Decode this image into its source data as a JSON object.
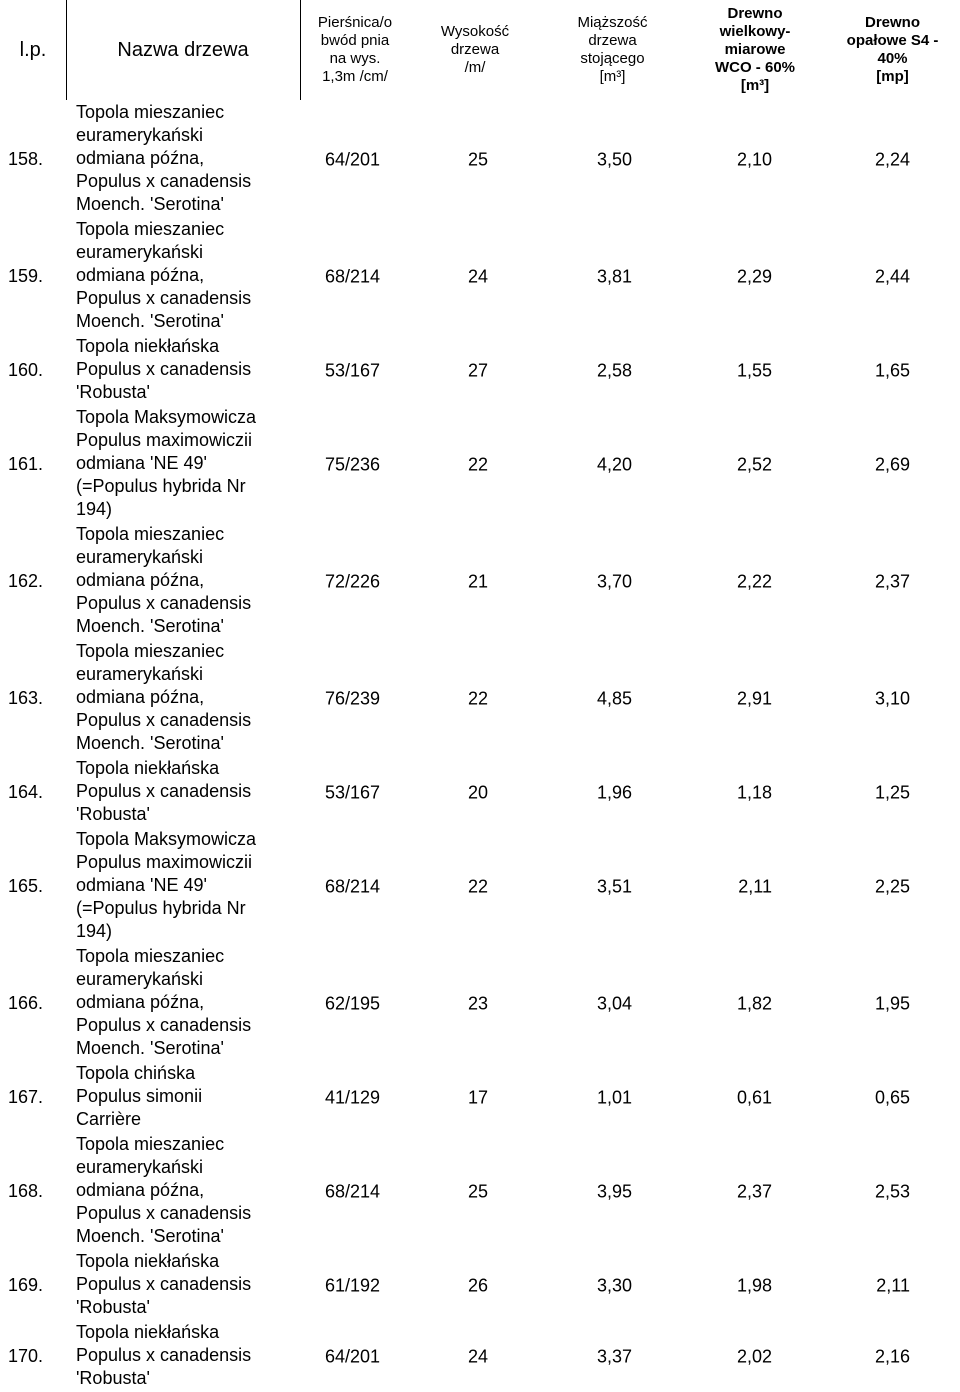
{
  "header": {
    "lp": "l.p.",
    "name": "Nazwa drzewa",
    "girth": "Pierśnica/o\nbwód pnia\nna wys.\n1,3m /cm/",
    "height": "Wysokość\ndrzewa\n/m/",
    "volume": "Miąższość\ndrzewa\nstojącego\n[m³]",
    "wco": "Drewno\nwielkowy-\nmiarowe\nWCO - 60%\n[m³]",
    "s4": "Drewno\nopałowe S4 -\n40%\n[mp]"
  },
  "rows": [
    {
      "lp": "158.",
      "name": [
        "Topola mieszaniec",
        "euramerykański",
        "odmiana późna,",
        "Populus x canadensis",
        "Moench. 'Serotina'"
      ],
      "girth": "64/201",
      "height": "25",
      "volume": "3,50",
      "wco": "2,10",
      "s4": "2,24"
    },
    {
      "lp": "159.",
      "name": [
        "Topola mieszaniec",
        "euramerykański",
        "odmiana późna,",
        "Populus x canadensis",
        "Moench. 'Serotina'"
      ],
      "girth": "68/214",
      "height": "24",
      "volume": "3,81",
      "wco": "2,29",
      "s4": "2,44"
    },
    {
      "lp": "160.",
      "name": [
        "Topola niekłańska",
        "Populus x canadensis",
        "'Robusta'"
      ],
      "girth": "53/167",
      "height": "27",
      "volume": "2,58",
      "wco": "1,55",
      "s4": "1,65"
    },
    {
      "lp": "161.",
      "name": [
        "Topola Maksymowicza",
        "Populus maximowiczii",
        "odmiana 'NE 49'",
        "(=Populus hybrida Nr",
        "194)"
      ],
      "girth": "75/236",
      "height": "22",
      "volume": "4,20",
      "wco": "2,52",
      "s4": "2,69"
    },
    {
      "lp": "162.",
      "name": [
        "Topola mieszaniec",
        "euramerykański",
        "odmiana późna,",
        "Populus x canadensis",
        "Moench. 'Serotina'"
      ],
      "girth": "72/226",
      "height": "21",
      "volume": "3,70",
      "wco": "2,22",
      "s4": "2,37"
    },
    {
      "lp": "163.",
      "name": [
        "Topola mieszaniec",
        "euramerykański",
        "odmiana późna,",
        "Populus x canadensis",
        "Moench. 'Serotina'"
      ],
      "girth": "76/239",
      "height": "22",
      "volume": "4,85",
      "wco": "2,91",
      "s4": "3,10"
    },
    {
      "lp": "164.",
      "name": [
        "Topola niekłańska",
        "Populus x canadensis",
        "'Robusta'"
      ],
      "girth": "53/167",
      "height": "20",
      "volume": "1,96",
      "wco": "1,18",
      "s4": "1,25"
    },
    {
      "lp": "165.",
      "name": [
        "Topola Maksymowicza",
        "Populus maximowiczii",
        "odmiana 'NE 49'",
        "(=Populus hybrida Nr",
        "194)"
      ],
      "girth": "68/214",
      "height": "22",
      "volume": "3,51",
      "wco": "2,11",
      "s4": "2,25"
    },
    {
      "lp": "166.",
      "name": [
        "Topola mieszaniec",
        "euramerykański",
        "odmiana późna,",
        "Populus x canadensis",
        "Moench. 'Serotina'"
      ],
      "girth": "62/195",
      "height": "23",
      "volume": "3,04",
      "wco": "1,82",
      "s4": "1,95"
    },
    {
      "lp": "167.",
      "name": [
        "Topola chińska",
        "Populus simonii",
        "Carrière"
      ],
      "girth": "41/129",
      "height": "17",
      "volume": "1,01",
      "wco": "0,61",
      "s4": "0,65"
    },
    {
      "lp": "168.",
      "name": [
        "Topola mieszaniec",
        "euramerykański",
        "odmiana późna,",
        "Populus x canadensis",
        "Moench. 'Serotina'"
      ],
      "girth": "68/214",
      "height": "25",
      "volume": "3,95",
      "wco": "2,37",
      "s4": "2,53"
    },
    {
      "lp": "169.",
      "name": [
        "Topola niekłańska",
        "Populus x canadensis",
        "'Robusta'"
      ],
      "girth": "61/192",
      "height": "26",
      "volume": "3,30",
      "wco": "1,98",
      "s4": "2,11"
    },
    {
      "lp": "170.",
      "name": [
        "Topola niekłańska",
        "Populus x canadensis",
        "'Robusta'"
      ],
      "girth": "64/201",
      "height": "24",
      "volume": "3,37",
      "wco": "2,02",
      "s4": "2,16"
    }
  ]
}
